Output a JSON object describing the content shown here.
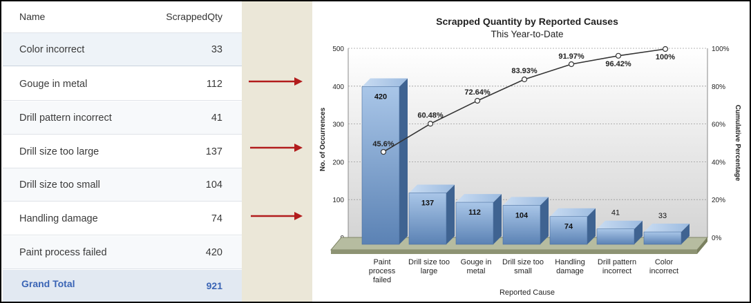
{
  "table": {
    "headers": {
      "name": "Name",
      "qty": "ScrappedQty"
    },
    "rows": [
      {
        "name": "Color incorrect",
        "qty": "33"
      },
      {
        "name": "Gouge in metal",
        "qty": "112"
      },
      {
        "name": "Drill pattern incorrect",
        "qty": "41"
      },
      {
        "name": "Drill size too large",
        "qty": "137"
      },
      {
        "name": "Drill size too small",
        "qty": "104"
      },
      {
        "name": "Handling damage",
        "qty": "74"
      },
      {
        "name": "Paint process failed",
        "qty": "420"
      }
    ],
    "total": {
      "name": "Grand Total",
      "qty": "921"
    }
  },
  "colors": {
    "arrow": "#b21c1c",
    "bar": "#7a9fcb",
    "total_text": "#3a64b5"
  },
  "chart_data": {
    "type": "bar",
    "title": "Scrapped Quantity by Reported Causes",
    "subtitle": "This Year-to-Date",
    "xlabel": "Reported Cause",
    "ylabel": "No. of Occurrences",
    "y2label": "Cumulative Percentage",
    "ylim": [
      0,
      500
    ],
    "y_ticks": [
      "0",
      "100",
      "200",
      "300",
      "400",
      "500"
    ],
    "y2_ticks": [
      "0%",
      "20%",
      "40%",
      "60%",
      "80%",
      "100%"
    ],
    "categories": [
      [
        "Paint",
        "process",
        "failed"
      ],
      [
        "Drill size too",
        "large"
      ],
      [
        "Gouge in",
        "metal"
      ],
      [
        "Drill size too",
        "small"
      ],
      [
        "Handling",
        "damage"
      ],
      [
        "Drill pattern",
        "incorrect"
      ],
      [
        "Color",
        "incorrect"
      ]
    ],
    "values": [
      420,
      137,
      112,
      104,
      74,
      41,
      33
    ],
    "value_labels": [
      "420",
      "137",
      "112",
      "104",
      "74",
      "41",
      "33"
    ],
    "cumulative": [
      45.6,
      60.48,
      72.64,
      83.93,
      91.97,
      96.42,
      100
    ],
    "cumulative_labels": [
      "45.6%",
      "60.48%",
      "72.64%",
      "83.93%",
      "91.97%",
      "96.42%",
      "100%"
    ],
    "grid": true
  }
}
